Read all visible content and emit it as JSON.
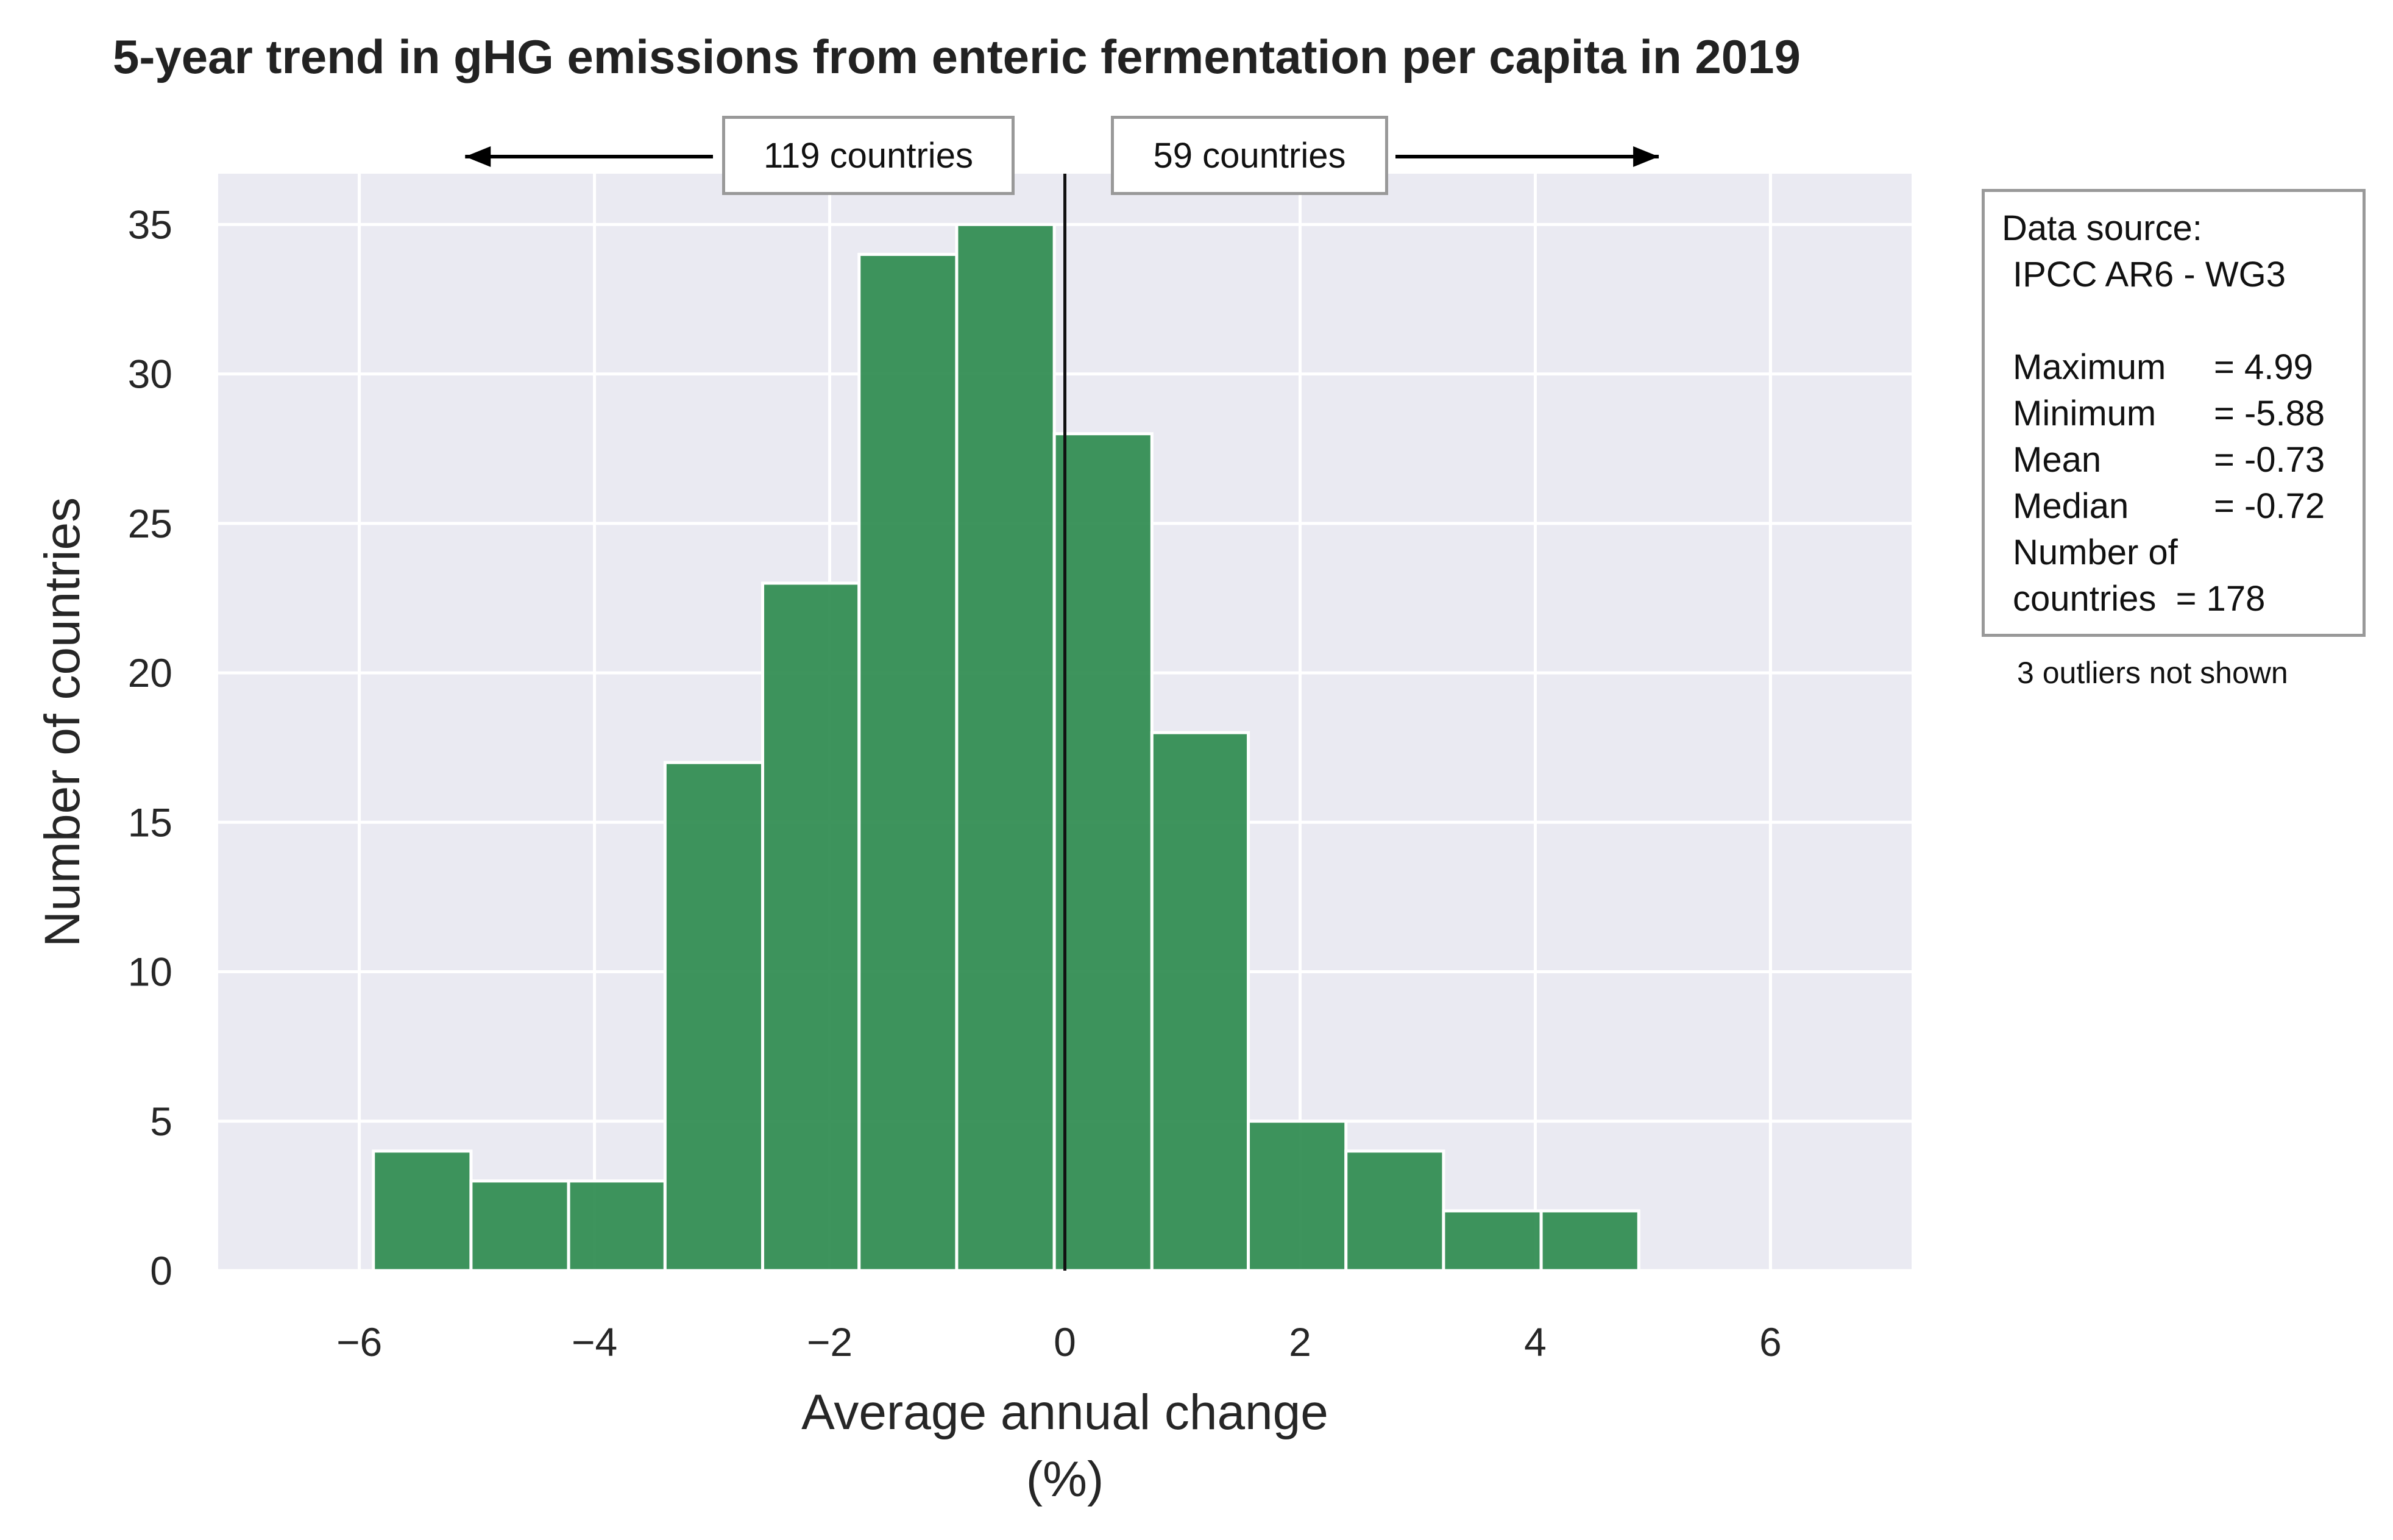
{
  "chart_data": {
    "type": "bar",
    "title": "5-year trend in gHG emissions from enteric fermentation per capita in 2019",
    "xlabel": "Average annual change",
    "xlabel_unit": "(%)",
    "ylabel": "Number of countries",
    "bin_edges": [
      -5.88,
      -5.05,
      -4.22,
      -3.4,
      -2.57,
      -1.75,
      -0.92,
      -0.09,
      0.74,
      1.56,
      2.39,
      3.22,
      4.05,
      4.88
    ],
    "values": [
      4,
      3,
      3,
      17,
      23,
      34,
      35,
      28,
      18,
      5,
      4,
      2,
      2
    ],
    "xlim": [
      -7.2,
      7.2
    ],
    "ylim": [
      0,
      36.7
    ],
    "xticks": [
      -6,
      -4,
      -2,
      0,
      2,
      4,
      6
    ],
    "xtick_labels": [
      "−6",
      "−4",
      "−2",
      "0",
      "2",
      "4",
      "6"
    ],
    "yticks": [
      0,
      5,
      10,
      15,
      20,
      25,
      30,
      35
    ],
    "ytick_labels": [
      "0",
      "5",
      "10",
      "15",
      "20",
      "25",
      "30",
      "35"
    ],
    "vline_x": 0,
    "grid": true,
    "bar_color": "#2e8b4f",
    "plot_bg": "#eaeaf2",
    "left_annotation": {
      "label": "119 countries",
      "arrow_to": -5.1
    },
    "right_annotation": {
      "label": "59 countries",
      "arrow_to": 5.05
    }
  },
  "info_box": {
    "source_label": "Data source:",
    "source_name": "IPCC AR6 - WG3",
    "stats": [
      {
        "label": "Maximum",
        "value": "= 4.99"
      },
      {
        "label": "Minimum",
        "value": "= -5.88"
      },
      {
        "label": "Mean",
        "value": "= -0.73"
      },
      {
        "label": "Median",
        "value": "= -0.72"
      }
    ],
    "count_line1": "Number of",
    "count_line2": "countries  = 178"
  },
  "outliers_note": "3 outliers not shown"
}
